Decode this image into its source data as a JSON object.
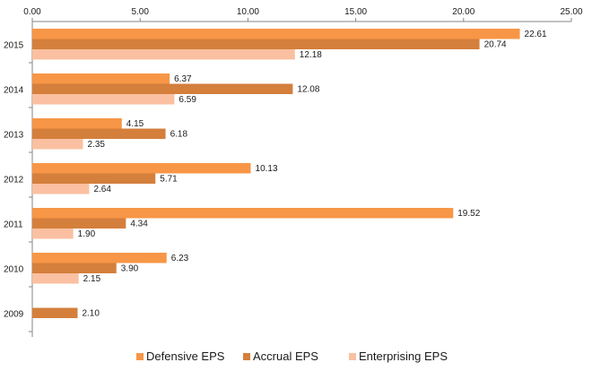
{
  "chart_data": {
    "type": "bar",
    "orientation": "horizontal",
    "categories": [
      "2015",
      "2014",
      "2013",
      "2012",
      "2011",
      "2010",
      "2009"
    ],
    "series": [
      {
        "name": "Defensive EPS",
        "color": "#F79646",
        "values": [
          22.61,
          6.37,
          4.15,
          10.13,
          19.52,
          6.23,
          null
        ]
      },
      {
        "name": "Accrual EPS",
        "color": "#D47F3C",
        "values": [
          20.74,
          12.08,
          6.18,
          5.71,
          4.34,
          3.9,
          2.1
        ]
      },
      {
        "name": "Enterprising EPS",
        "color": "#FAC0A1",
        "values": [
          12.18,
          6.59,
          2.35,
          2.64,
          1.9,
          2.15,
          null
        ]
      }
    ],
    "xlim": [
      0,
      25
    ],
    "xticks": [
      "0.00",
      "5.00",
      "10.00",
      "15.00",
      "20.00",
      "25.00"
    ],
    "axis_position": "top",
    "data_labels": true,
    "label_decimals": 2,
    "grid": false,
    "legend_position": "bottom"
  }
}
